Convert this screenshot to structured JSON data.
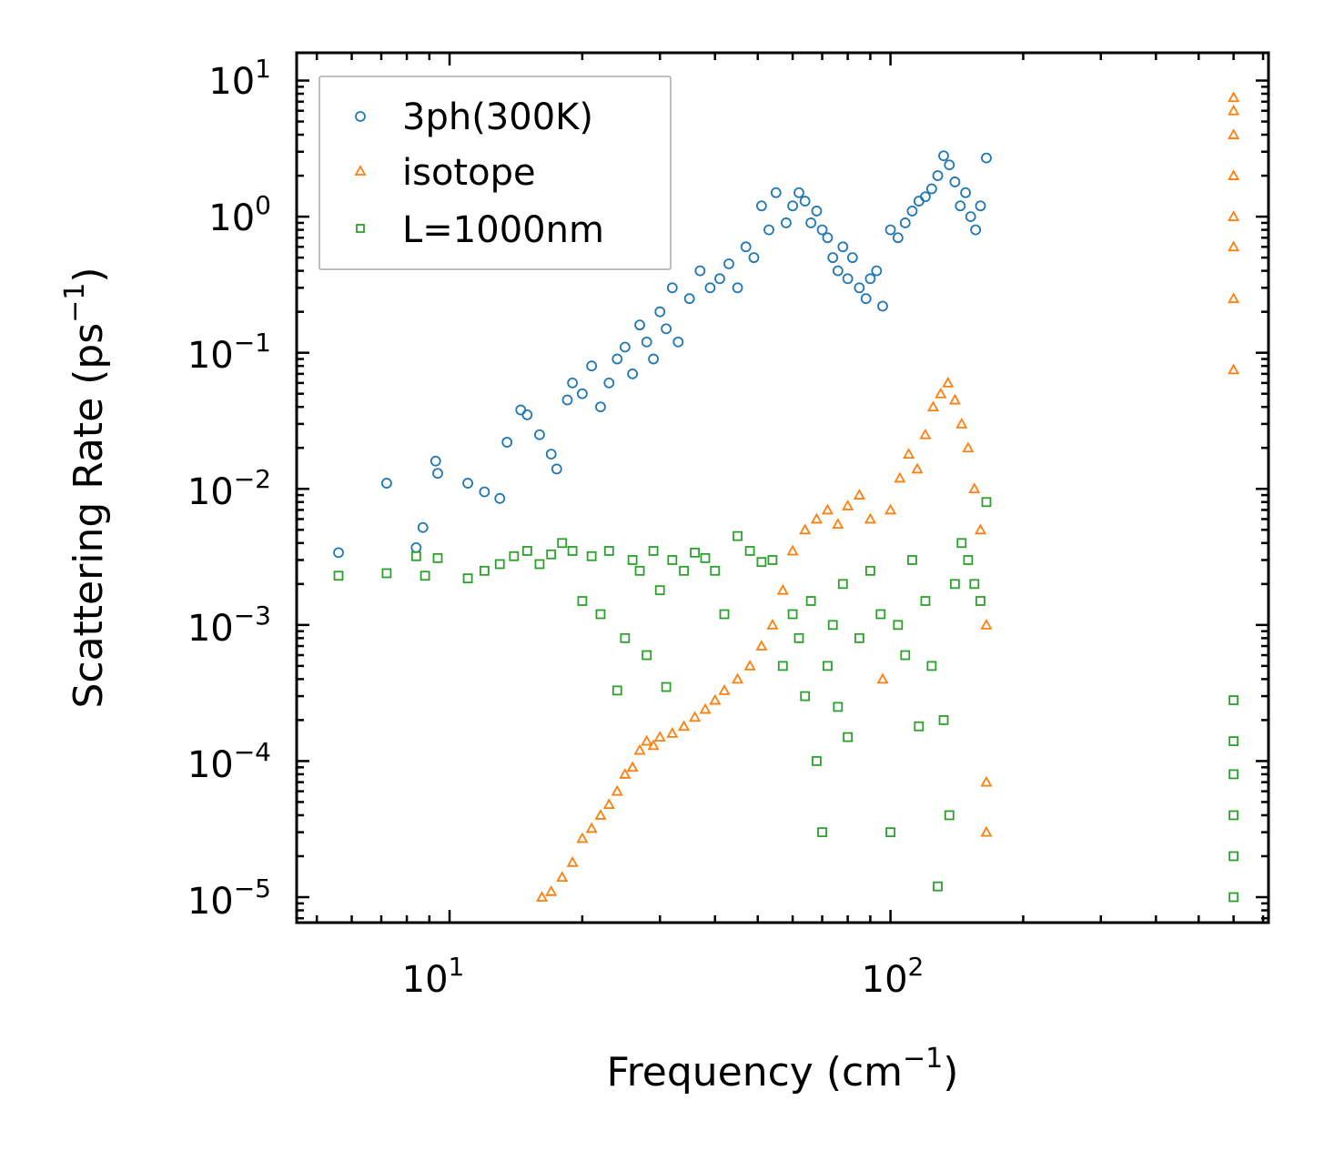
{
  "chart_data": {
    "type": "scatter",
    "title": "",
    "xlabel": "Frequency (cm",
    "xlabel_sup": "−1",
    "xlabel_close": ")",
    "ylabel": "Scattering Rate (ps",
    "ylabel_sup": "−1",
    "ylabel_close": ")",
    "xscale": "log",
    "yscale": "log",
    "xlim": [
      4.5,
      720
    ],
    "ylim": [
      6.5e-06,
      16
    ],
    "legend_position": "top-left",
    "x_ticks": [
      {
        "base": "10",
        "exp": "1",
        "value": 10
      },
      {
        "base": "10",
        "exp": "2",
        "value": 100
      }
    ],
    "y_ticks": [
      {
        "base": "10",
        "exp": "1",
        "value": 10
      },
      {
        "base": "10",
        "exp": "0",
        "value": 1
      },
      {
        "base": "10",
        "exp": "−1",
        "value": 0.1
      },
      {
        "base": "10",
        "exp": "−2",
        "value": 0.01
      },
      {
        "base": "10",
        "exp": "−3",
        "value": 0.001
      },
      {
        "base": "10",
        "exp": "−4",
        "value": 0.0001
      },
      {
        "base": "10",
        "exp": "−5",
        "value": 1e-05
      }
    ],
    "series": [
      {
        "name": "3ph(300K)",
        "color": "#1f77b4",
        "marker": "circle",
        "x": [
          5.6,
          7.2,
          8.4,
          8.7,
          9.4,
          9.3,
          11.0,
          12.0,
          13.0,
          13.5,
          14.5,
          15.0,
          16.0,
          17.0,
          17.5,
          18.5,
          19.0,
          20.0,
          21.0,
          22.0,
          23.0,
          24.0,
          25.0,
          26.0,
          27.0,
          28.0,
          29.0,
          30.0,
          31.0,
          32.0,
          33.0,
          35.0,
          37.0,
          39.0,
          41.0,
          43.0,
          45.0,
          47.0,
          49.0,
          51.0,
          53.0,
          55.0,
          58.0,
          60.0,
          62.0,
          64.0,
          66.0,
          68.0,
          70.0,
          72.0,
          74.0,
          76.0,
          78.0,
          80.0,
          82.0,
          85.0,
          88.0,
          90.0,
          93.0,
          96.0,
          100.0,
          104.0,
          108.0,
          112.0,
          116.0,
          120.0,
          124.0,
          128.0,
          132.0,
          136.0,
          140.0,
          144.0,
          148.0,
          152.0,
          156.0,
          160.0,
          165.0
        ],
        "y": [
          0.0034,
          0.011,
          0.0037,
          0.0052,
          0.013,
          0.016,
          0.011,
          0.0095,
          0.0085,
          0.022,
          0.038,
          0.035,
          0.025,
          0.018,
          0.014,
          0.045,
          0.06,
          0.05,
          0.08,
          0.04,
          0.06,
          0.09,
          0.11,
          0.07,
          0.16,
          0.12,
          0.09,
          0.2,
          0.15,
          0.3,
          0.12,
          0.25,
          0.4,
          0.3,
          0.35,
          0.45,
          0.3,
          0.6,
          0.5,
          1.2,
          0.8,
          1.5,
          0.9,
          1.2,
          1.5,
          1.3,
          0.9,
          1.1,
          0.8,
          0.7,
          0.5,
          0.4,
          0.6,
          0.35,
          0.5,
          0.3,
          0.25,
          0.35,
          0.4,
          0.22,
          0.8,
          0.7,
          0.9,
          1.1,
          1.3,
          1.4,
          1.6,
          2.0,
          2.8,
          2.4,
          1.8,
          1.2,
          1.5,
          1.0,
          0.8,
          1.2,
          2.7
        ]
      },
      {
        "name": "isotope",
        "color": "#ff7f0e",
        "marker": "triangle",
        "x": [
          16.2,
          17.0,
          18.0,
          19.0,
          20.0,
          21.0,
          22.0,
          23.0,
          24.0,
          25.0,
          26.0,
          27.0,
          28.0,
          29.0,
          30.0,
          32.0,
          34.0,
          36.0,
          38.0,
          40.0,
          42.0,
          45.0,
          48.0,
          51.0,
          54.0,
          57.0,
          60.0,
          64.0,
          68.0,
          72.0,
          76.0,
          80.0,
          85.0,
          90.0,
          96.0,
          100.0,
          105.0,
          110.0,
          115.0,
          120.0,
          125.0,
          130.0,
          135.0,
          140.0,
          145.0,
          150.0,
          155.0,
          160.0,
          165.0,
          165.0,
          165.0,
          600.0,
          600.0,
          600.0,
          600.0,
          600.0,
          600.0,
          600.0,
          600.0
        ],
        "y": [
          1e-05,
          1.1e-05,
          1.4e-05,
          1.8e-05,
          2.7e-05,
          3.2e-05,
          4e-05,
          4.8e-05,
          6e-05,
          8e-05,
          9e-05,
          0.00012,
          0.00014,
          0.00013,
          0.00015,
          0.00016,
          0.00018,
          0.00021,
          0.00024,
          0.00028,
          0.00033,
          0.0004,
          0.0005,
          0.0007,
          0.001,
          0.0018,
          0.0035,
          0.005,
          0.006,
          0.007,
          0.0055,
          0.0075,
          0.009,
          0.006,
          0.0004,
          0.007,
          0.012,
          0.018,
          0.014,
          0.025,
          0.04,
          0.05,
          0.06,
          0.045,
          0.03,
          0.02,
          0.01,
          0.005,
          0.001,
          7e-05,
          3e-05,
          7.5,
          6.0,
          4.0,
          2.0,
          1.0,
          0.6,
          0.25,
          0.075
        ]
      },
      {
        "name": "L=1000nm",
        "color": "#2ca02c",
        "marker": "square",
        "x": [
          5.6,
          7.2,
          8.4,
          8.8,
          9.4,
          11.0,
          12.0,
          13.0,
          14.0,
          15.0,
          16.0,
          17.0,
          18.0,
          19.0,
          20.0,
          21.0,
          22.0,
          23.0,
          24.0,
          25.0,
          26.0,
          27.0,
          28.0,
          29.0,
          30.0,
          31.0,
          32.0,
          34.0,
          36.0,
          38.0,
          40.0,
          42.0,
          45.0,
          48.0,
          51.0,
          54.0,
          57.0,
          60.0,
          62.0,
          64.0,
          66.0,
          68.0,
          70.0,
          72.0,
          74.0,
          76.0,
          78.0,
          80.0,
          85.0,
          90.0,
          95.0,
          100.0,
          104.0,
          108.0,
          112.0,
          116.0,
          120.0,
          124.0,
          128.0,
          132.0,
          136.0,
          140.0,
          145.0,
          150.0,
          155.0,
          160.0,
          165.0,
          600.0,
          600.0,
          600.0,
          600.0,
          600.0,
          600.0
        ],
        "y": [
          0.0023,
          0.0024,
          0.0032,
          0.0023,
          0.0031,
          0.0022,
          0.0025,
          0.0028,
          0.0032,
          0.0035,
          0.0028,
          0.0033,
          0.004,
          0.0035,
          0.0015,
          0.0032,
          0.0012,
          0.0035,
          0.00033,
          0.0008,
          0.003,
          0.0025,
          0.0006,
          0.0035,
          0.0018,
          0.00035,
          0.003,
          0.0025,
          0.0034,
          0.0031,
          0.0025,
          0.0012,
          0.0045,
          0.0035,
          0.0029,
          0.003,
          0.0005,
          0.0012,
          0.0008,
          0.0003,
          0.0015,
          0.0001,
          3e-05,
          0.0005,
          0.001,
          0.00025,
          0.002,
          0.00015,
          0.0008,
          0.0025,
          0.0012,
          3e-05,
          0.001,
          0.0006,
          0.003,
          0.00018,
          0.0015,
          0.0005,
          1.2e-05,
          0.0002,
          4e-05,
          0.002,
          0.004,
          0.003,
          0.002,
          0.0015,
          0.008,
          0.00028,
          0.00014,
          8e-05,
          4e-05,
          2e-05,
          1e-05
        ]
      }
    ]
  }
}
